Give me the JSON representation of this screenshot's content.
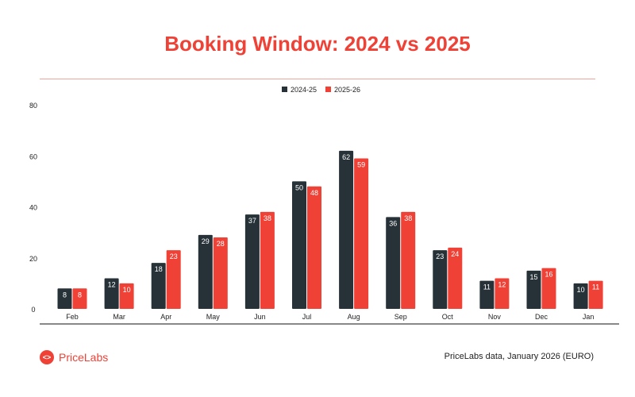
{
  "chart_data": {
    "type": "bar",
    "title": "Booking Window: 2024 vs 2025",
    "categories": [
      "Feb",
      "Mar",
      "Apr",
      "May",
      "Jun",
      "Jul",
      "Aug",
      "Sep",
      "Oct",
      "Nov",
      "Dec",
      "Jan"
    ],
    "series": [
      {
        "name": "2024-25",
        "color": "#263238",
        "values": [
          8,
          12,
          18,
          29,
          37,
          50,
          62,
          36,
          23,
          11,
          15,
          10
        ]
      },
      {
        "name": "2025-26",
        "color": "#ef4136",
        "values": [
          8,
          10,
          23,
          28,
          38,
          48,
          59,
          38,
          24,
          12,
          16,
          11
        ]
      }
    ],
    "yticks": [
      0,
      20,
      40,
      60,
      80
    ],
    "ylim": [
      0,
      80
    ],
    "xlabel": "",
    "ylabel": "",
    "grid": false,
    "legend": "top-center",
    "data_labels": true
  },
  "footer": {
    "brand": "PriceLabs",
    "source": "PriceLabs data, January 2026 (EURO)"
  },
  "colors": {
    "accent": "#ef4136",
    "dark": "#263238"
  }
}
